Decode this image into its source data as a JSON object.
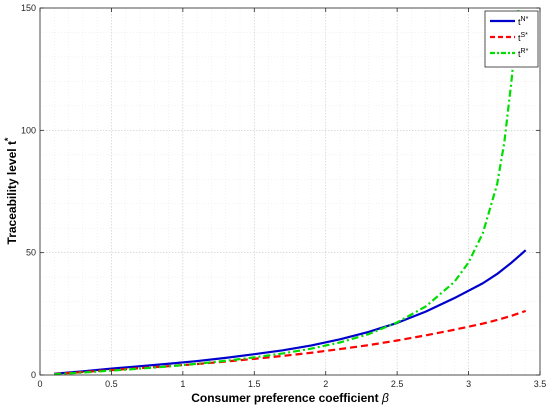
{
  "chart_data": {
    "type": "line",
    "xlabel": {
      "main": "Consumer preference coefficient ",
      "symbol": "β"
    },
    "ylabel": {
      "main": "Traceability level t",
      "sup": "*"
    },
    "xlim": [
      0,
      3.5
    ],
    "ylim": [
      0,
      150
    ],
    "xticks": [
      0,
      0.5,
      1,
      1.5,
      2,
      2.5,
      3,
      3.5
    ],
    "yticks": [
      0,
      50,
      100,
      150
    ],
    "xtick_labels": [
      "0",
      "0.5",
      "1",
      "1.5",
      "2",
      "2.5",
      "3",
      "3.5"
    ],
    "ytick_labels": [
      "0",
      "50",
      "100",
      "150"
    ],
    "grid": true,
    "legend_position": "top-right",
    "series": [
      {
        "name": "t",
        "sup": "N*",
        "color": "#0000cc",
        "dash": "solid",
        "points": [
          [
            0.1,
            0.5
          ],
          [
            0.3,
            1.5
          ],
          [
            0.5,
            2.6
          ],
          [
            0.7,
            3.6
          ],
          [
            0.9,
            4.6
          ],
          [
            1.1,
            5.7
          ],
          [
            1.3,
            7.0
          ],
          [
            1.5,
            8.5
          ],
          [
            1.7,
            10.1
          ],
          [
            1.9,
            12.1
          ],
          [
            2.1,
            14.6
          ],
          [
            2.3,
            17.6
          ],
          [
            2.5,
            21.3
          ],
          [
            2.7,
            25.9
          ],
          [
            2.9,
            31.4
          ],
          [
            3.1,
            37.5
          ],
          [
            3.2,
            41.3
          ],
          [
            3.3,
            45.9
          ],
          [
            3.4,
            51.0
          ]
        ]
      },
      {
        "name": "t",
        "sup": "S*",
        "color": "#ff0000",
        "dash": "dashed",
        "points": [
          [
            0.1,
            0.4
          ],
          [
            0.3,
            1.2
          ],
          [
            0.5,
            2.0
          ],
          [
            0.7,
            2.8
          ],
          [
            0.9,
            3.6
          ],
          [
            1.1,
            4.5
          ],
          [
            1.3,
            5.5
          ],
          [
            1.5,
            6.6
          ],
          [
            1.7,
            7.8
          ],
          [
            1.9,
            9.1
          ],
          [
            2.1,
            10.6
          ],
          [
            2.3,
            12.2
          ],
          [
            2.5,
            14.1
          ],
          [
            2.7,
            16.2
          ],
          [
            2.9,
            18.5
          ],
          [
            3.1,
            21.0
          ],
          [
            3.2,
            22.5
          ],
          [
            3.3,
            24.2
          ],
          [
            3.4,
            26.2
          ]
        ]
      },
      {
        "name": "t",
        "sup": "R*",
        "color": "#00dd00",
        "dash": "dashdot",
        "points": [
          [
            0.1,
            0.3
          ],
          [
            0.3,
            1.0
          ],
          [
            0.5,
            1.8
          ],
          [
            0.7,
            2.6
          ],
          [
            0.9,
            3.5
          ],
          [
            1.1,
            4.6
          ],
          [
            1.3,
            5.8
          ],
          [
            1.5,
            7.2
          ],
          [
            1.7,
            8.8
          ],
          [
            1.9,
            10.8
          ],
          [
            2.1,
            13.3
          ],
          [
            2.3,
            16.7
          ],
          [
            2.5,
            21.5
          ],
          [
            2.7,
            28.0
          ],
          [
            2.9,
            38.0
          ],
          [
            3.0,
            46.0
          ],
          [
            3.1,
            58.0
          ],
          [
            3.2,
            78.0
          ],
          [
            3.25,
            95.0
          ],
          [
            3.3,
            120.0
          ],
          [
            3.33,
            138.0
          ],
          [
            3.35,
            150.0
          ]
        ]
      }
    ]
  }
}
